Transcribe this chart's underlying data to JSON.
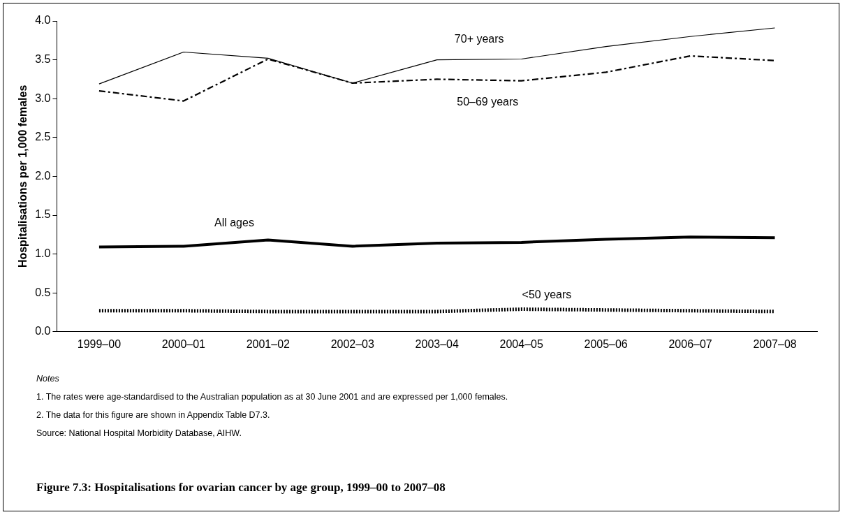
{
  "chart_data": {
    "type": "line",
    "title": "Figure 7.3: Hospitalisations for ovarian cancer by age group, 1999–00 to 2007–08",
    "ylabel": "Hospitalisations per 1,000 females",
    "categories": [
      "1999–00",
      "2000–01",
      "2001–02",
      "2002–03",
      "2003–04",
      "2004–05",
      "2005–06",
      "2006–07",
      "2007–08"
    ],
    "series": [
      {
        "name": "70+ years",
        "color": "#000000",
        "line_style": "solid",
        "values": [
          3.19,
          3.6,
          3.52,
          3.2,
          3.5,
          3.51,
          3.67,
          3.8,
          3.91
        ]
      },
      {
        "name": "50–69 years",
        "color": "#000000",
        "line_style": "dashdot",
        "values": [
          3.1,
          2.97,
          3.51,
          3.2,
          3.25,
          3.23,
          3.34,
          3.55,
          3.49
        ]
      },
      {
        "name": "All ages",
        "color": "#000000",
        "line_style": "solid",
        "values": [
          1.09,
          1.1,
          1.18,
          1.1,
          1.14,
          1.15,
          1.19,
          1.22,
          1.21
        ]
      },
      {
        "name": "<50 years",
        "color": "#000000",
        "line_style": "dotted",
        "values": [
          0.27,
          0.27,
          0.26,
          0.26,
          0.26,
          0.29,
          0.28,
          0.27,
          0.26
        ]
      }
    ],
    "ylim": [
      0,
      4
    ],
    "yticks": [
      {
        "value": 0,
        "label": "0.0"
      },
      {
        "value": 0.5,
        "label": "0.5"
      },
      {
        "value": 1,
        "label": "1.0"
      },
      {
        "value": 1.5,
        "label": "1.5"
      },
      {
        "value": 2,
        "label": "2.0"
      },
      {
        "value": 2.5,
        "label": "2.5"
      },
      {
        "value": 3,
        "label": "3.0"
      },
      {
        "value": 3.5,
        "label": "3.5"
      },
      {
        "value": 4,
        "label": "4.0"
      }
    ],
    "grid": false,
    "legend": false,
    "marker": "none",
    "annotations": [
      "Notes",
      "1.    The rates were age-standardised to the Australian population as at 30 June 2001 and are expressed per 1,000 females.",
      "2.    The data for this figure are shown in Appendix Table D7.3.",
      "Source: National Hospital Morbidity Database, AIHW."
    ]
  }
}
